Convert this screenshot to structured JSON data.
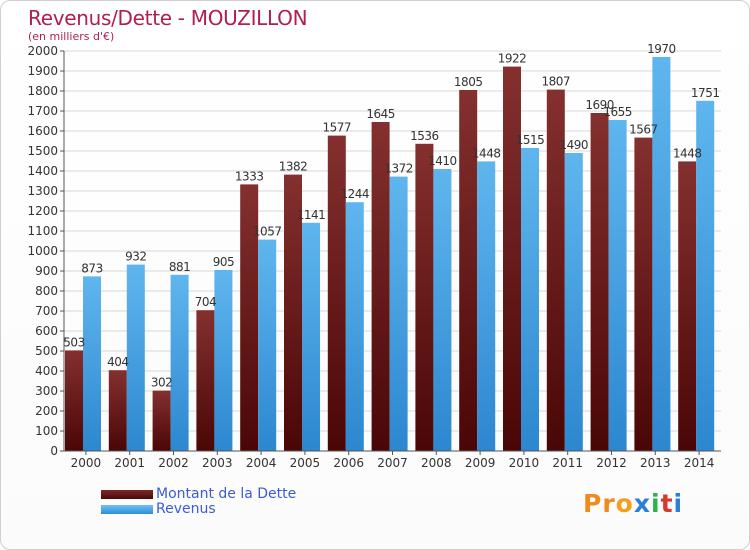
{
  "title": "Revenus/Dette - MOUZILLON",
  "subtitle": "(en milliers d'€)",
  "legend": {
    "debt_label": "Montant de la Dette",
    "revenue_label": "Revenus"
  },
  "logo": {
    "text": "Proxiti",
    "letters": [
      "P",
      "r",
      "o",
      "x",
      "i",
      "t",
      "i"
    ],
    "colors": [
      "#f08a1c",
      "#f08a1c",
      "#f0a01c",
      "#2b7fd6",
      "#2bb24a",
      "#d63a2b",
      "#2b7fd6"
    ]
  },
  "colors": {
    "debt": "#6b1c1c",
    "revenue": "#4aa8e8",
    "title": "#b01f4f",
    "legend_text": "#3b5bd9"
  },
  "chart_data": {
    "type": "bar",
    "title": "Revenus/Dette - MOUZILLON",
    "subtitle": "(en milliers d'€)",
    "categories": [
      "2000",
      "2001",
      "2002",
      "2003",
      "2004",
      "2005",
      "2006",
      "2007",
      "2008",
      "2009",
      "2010",
      "2011",
      "2012",
      "2013",
      "2014"
    ],
    "series": [
      {
        "name": "Montant de la Dette",
        "values": [
          503,
          404,
          302,
          704,
          1333,
          1382,
          1577,
          1645,
          1536,
          1805,
          1922,
          1807,
          1690,
          1567,
          1448
        ]
      },
      {
        "name": "Revenus",
        "values": [
          873,
          932,
          881,
          905,
          1057,
          1141,
          1244,
          1372,
          1410,
          1448,
          1515,
          1490,
          1655,
          1970,
          1751
        ]
      }
    ],
    "data_labels": {
      "debt": [
        "503",
        "404",
        "302",
        "704",
        "1333",
        "1382",
        "1577",
        "1645",
        "1536",
        "1805",
        "1922",
        "1807",
        "1690",
        "1567",
        "1448"
      ],
      "revenue": [
        "873",
        "932",
        "881",
        "905",
        "1057",
        "1141",
        "1244",
        "1372",
        "1410",
        "1448",
        "1515",
        "1490",
        "1655",
        "1970",
        "1751"
      ]
    },
    "ylim": [
      0,
      2000
    ],
    "ytick_step": 100,
    "yticks": [
      "0",
      "100",
      "200",
      "300",
      "400",
      "500",
      "600",
      "700",
      "800",
      "900",
      "1000",
      "1100",
      "1200",
      "1300",
      "1400",
      "1500",
      "1600",
      "1700",
      "1800",
      "1900",
      "2000"
    ],
    "grid": true,
    "legend_position": "bottom-left"
  }
}
